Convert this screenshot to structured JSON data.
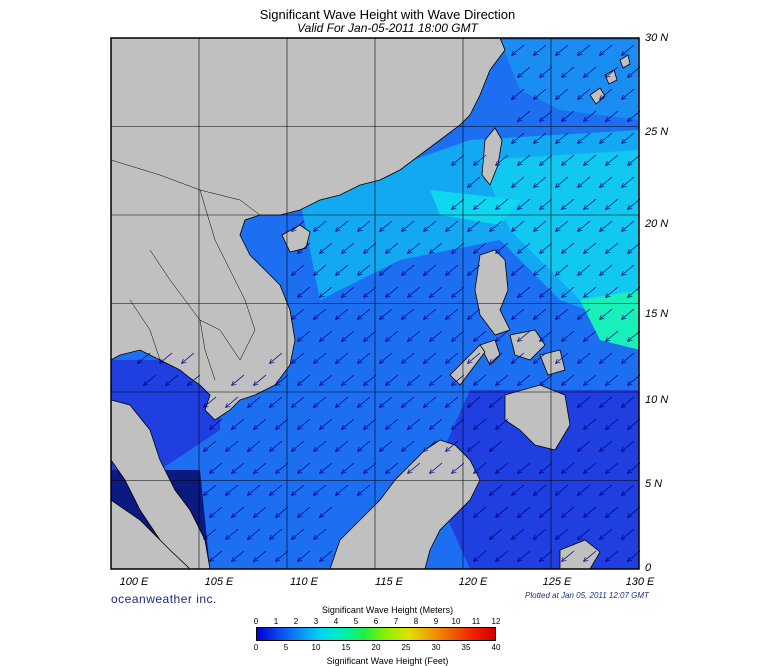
{
  "title": "Significant Wave Height with Wave Direction",
  "subtitle": "Valid For Jan-05-2011 18:00 GMT",
  "credit": "oceanweather inc.",
  "plotted": "Plotted at Jan 05, 2011 12:07 GMT",
  "map_extent": {
    "lon_min": 100,
    "lon_max": 130,
    "lat_min": 0,
    "lat_max": 30
  },
  "lat_labels": [
    "30 N",
    "25 N",
    "20 N",
    "15 N",
    "10 N",
    "5 N",
    "0"
  ],
  "lon_labels": [
    "100 E",
    "105 E",
    "110 E",
    "115 E",
    "120 E",
    "125 E",
    "130 E"
  ],
  "colors": {
    "land": "#c0c0c0",
    "sea_dark": "#1f3fe0",
    "sea_mid": "#1c6ff0",
    "sea_light": "#12a9f2",
    "sea_cyan": "#10d7f0",
    "sea_green": "#19efb9",
    "arrow": "#000080"
  },
  "wave_direction": "from northeast toward southwest",
  "colorbar": {
    "title_meters": "Significant Wave Height (Meters)",
    "title_feet": "Significant Wave Height (Feet)",
    "meters_ticks": [
      "0",
      "1",
      "2",
      "3",
      "4",
      "5",
      "6",
      "7",
      "8",
      "9",
      "10",
      "11",
      "12"
    ],
    "feet_ticks": [
      "0",
      "5",
      "10",
      "15",
      "20",
      "25",
      "30",
      "35",
      "40"
    ],
    "colors": [
      "#0000d0",
      "#0a48f0",
      "#0a90f5",
      "#00d8f0",
      "#00f0b0",
      "#20f040",
      "#90f000",
      "#e0e000",
      "#f0a000",
      "#f06000",
      "#f02000",
      "#d00000"
    ]
  }
}
